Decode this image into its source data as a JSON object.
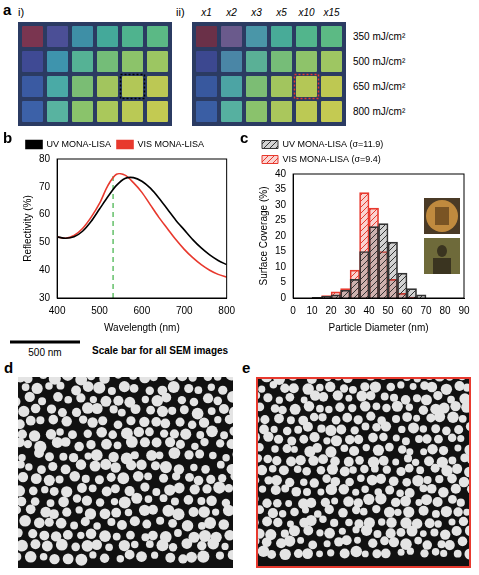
{
  "panel_letters": [
    "a",
    "b",
    "c",
    "d",
    "e"
  ],
  "panel_a": {
    "grids": [
      {
        "label": "i)",
        "colors": [
          [
            "#7a3550",
            "#4b4f96",
            "#3e8fa6",
            "#44a99a",
            "#4fb38e",
            "#5bb985"
          ],
          [
            "#3f4a94",
            "#3e94ad",
            "#55b295",
            "#74bd78",
            "#8cc36a",
            "#9cc662"
          ],
          [
            "#3a5aa2",
            "#4aaaa6",
            "#7abd74",
            "#a2c55e",
            "#b2c757",
            "#bcc854"
          ],
          [
            "#3c61a8",
            "#58b3a0",
            "#8ac36b",
            "#aac85b",
            "#bac955",
            "#c3ca52"
          ]
        ]
      },
      {
        "label": "ii)",
        "colors": [
          [
            "#6a3048",
            "#6a5a8c",
            "#4a96a8",
            "#48ab98",
            "#52b58c",
            "#5cba84"
          ],
          [
            "#3c4890",
            "#4a86a6",
            "#5ab096",
            "#76bd78",
            "#8ec36a",
            "#9ec662"
          ],
          [
            "#38589e",
            "#4ca4a4",
            "#7cbd74",
            "#a2c55e",
            "#b4c756",
            "#bec852"
          ],
          [
            "#3a5ea4",
            "#56b0a0",
            "#8ac26c",
            "#aac75c",
            "#bcc954",
            "#c4ca52"
          ]
        ]
      }
    ],
    "column_labels": [
      "x1",
      "x2",
      "x3",
      "x5",
      "x10",
      "x15"
    ],
    "row_labels": [
      "350 mJ/cm²",
      "500 mJ/cm²",
      "650 mJ/cm²",
      "800 mJ/cm²"
    ]
  },
  "chart_data": [
    {
      "type": "line",
      "x_label": "Wavelength (nm)",
      "y_label": "Reflectivity (%)",
      "x": [
        400,
        420,
        440,
        460,
        480,
        500,
        520,
        540,
        560,
        580,
        600,
        620,
        640,
        660,
        680,
        700,
        720,
        740,
        760,
        780,
        800
      ],
      "series": [
        {
          "name": "UV MONA-LISA",
          "color": "#000000",
          "values": [
            52,
            51.5,
            52,
            54,
            57.5,
            62,
            66.5,
            70.5,
            73,
            73.3,
            72,
            69.5,
            66,
            62,
            58,
            54.5,
            51,
            48,
            45.5,
            43.5,
            42
          ]
        },
        {
          "name": "VIS MONA-LISA",
          "color": "#e8392e",
          "values": [
            52,
            51.5,
            52.5,
            55,
            59,
            64,
            70.5,
            74.5,
            74.2,
            71.5,
            68,
            63.5,
            59,
            55,
            51,
            47.5,
            44.5,
            42,
            40,
            38.5,
            37.5
          ]
        }
      ],
      "reference_line": {
        "x": 532,
        "y": [
          30,
          74.5
        ],
        "color": "#3cb043",
        "line_style": "dashed"
      },
      "xlim": [
        400,
        800
      ],
      "xticks": [
        400,
        500,
        600,
        700,
        800
      ],
      "ylim": [
        30,
        80
      ],
      "yticks": [
        30,
        40,
        50,
        60,
        70,
        80
      ],
      "legend": "top",
      "grid": false
    },
    {
      "type": "histogram",
      "x_label": "Particle Diameter (nm)",
      "y_label": "Surface Coverage (%)",
      "bins": [
        0,
        5,
        10,
        15,
        20,
        25,
        30,
        35,
        40,
        45,
        50,
        55,
        60,
        65,
        70,
        75,
        80,
        85,
        90
      ],
      "series": [
        {
          "name": "UV MONA-LISA (σ=11.9)",
          "color": "#333333",
          "values": [
            0,
            0,
            0.2,
            0.5,
            1,
            2.5,
            6,
            15,
            23,
            24,
            18,
            8,
            3,
            1,
            0,
            0,
            0,
            0
          ]
        },
        {
          "name": "VIS MONA-LISA (σ=9.4)",
          "color": "#e8392e",
          "values": [
            0,
            0,
            0.2,
            0.8,
            2,
            3,
            9,
            34,
            29,
            15,
            6,
            1.5,
            0.3,
            0,
            0,
            0,
            0,
            0
          ]
        }
      ],
      "xlim": [
        0,
        90
      ],
      "xticks": [
        0,
        10,
        20,
        30,
        40,
        50,
        60,
        70,
        80,
        90
      ],
      "ylim": [
        0,
        40
      ],
      "yticks": [
        0,
        5,
        10,
        15,
        20,
        25,
        30,
        35,
        40
      ],
      "legend": "top",
      "grid": false
    }
  ],
  "scale_bar": {
    "label": "500 nm",
    "caption": "Scale bar for all SEM images"
  }
}
